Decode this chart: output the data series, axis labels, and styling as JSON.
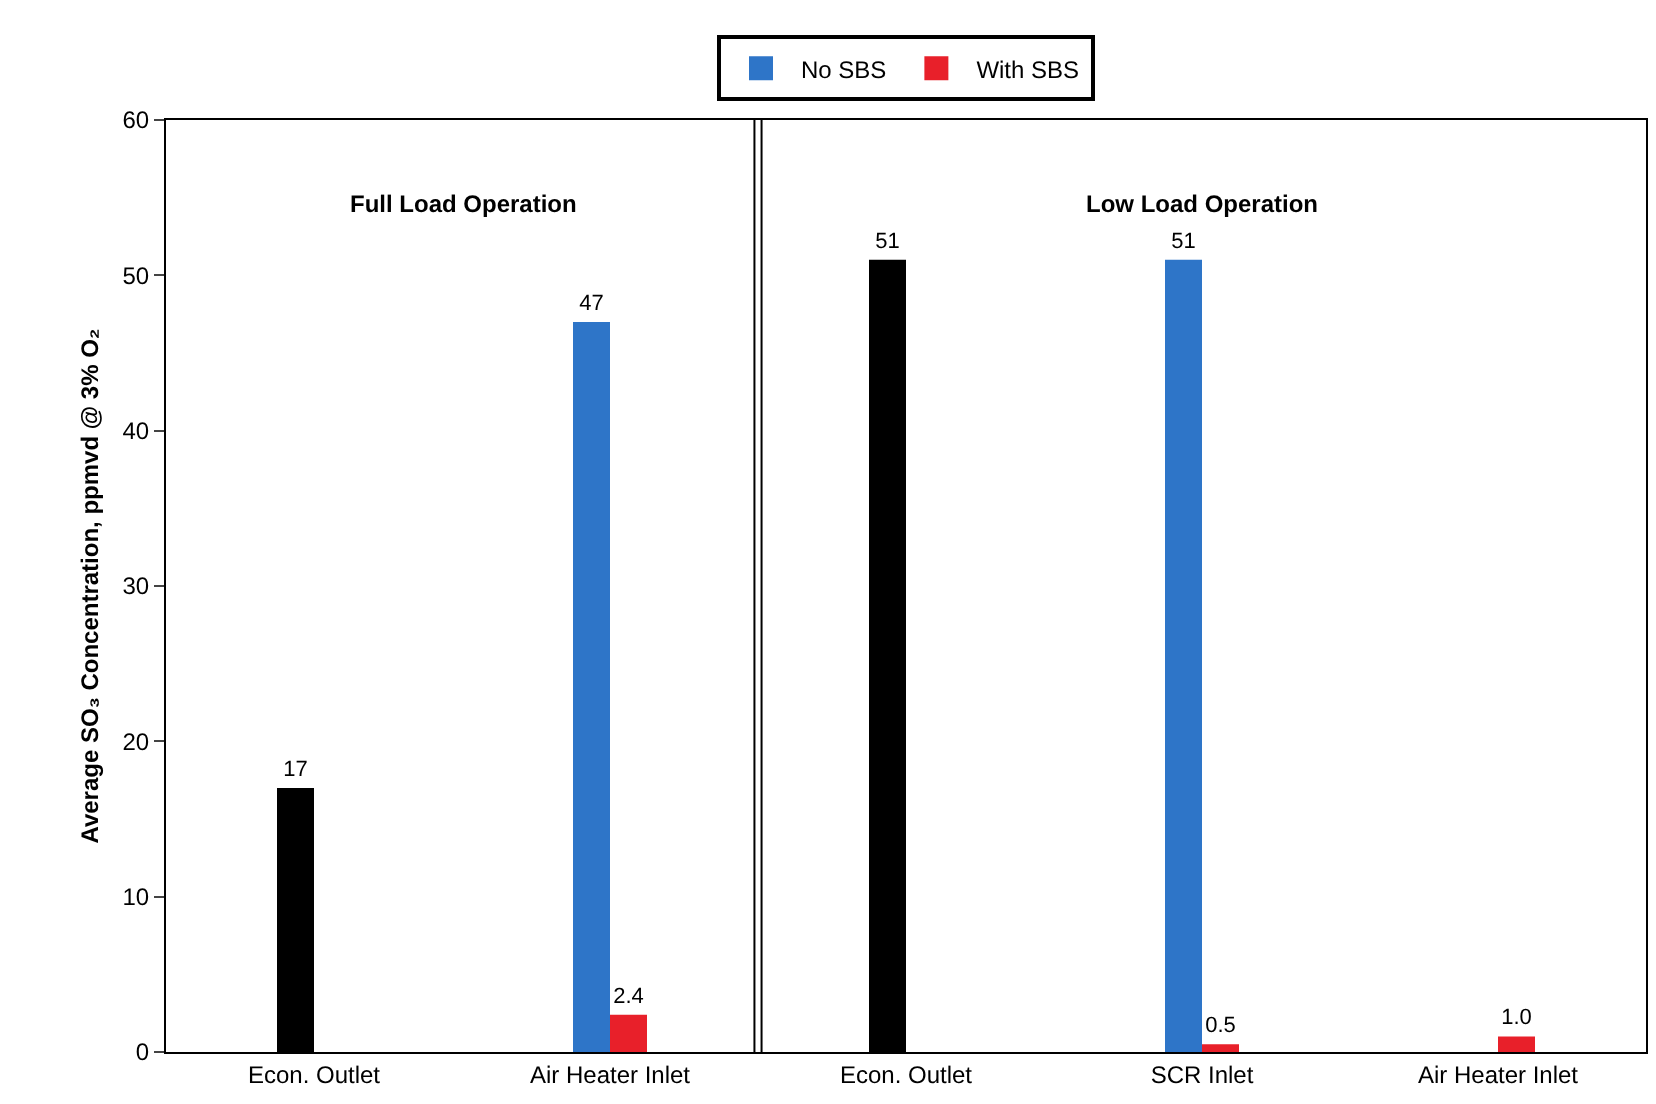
{
  "chart_data": {
    "type": "bar",
    "ylabel": "Average SO₃ Concentration, ppmvd @ 3% O₂",
    "categories": [
      "Econ. Outlet",
      "Air Heater Inlet",
      "Econ. Outlet",
      "SCR Inlet",
      "Air Heater Inlet"
    ],
    "series": [
      {
        "color": "#000000",
        "values": [
          17,
          null,
          51,
          null,
          null
        ],
        "value_labels": [
          "17",
          null,
          "51",
          null,
          null
        ]
      },
      {
        "name": "No SBS",
        "color": "#2e75c8",
        "values": [
          null,
          47,
          null,
          51,
          null
        ],
        "value_labels": [
          null,
          "47",
          null,
          "51",
          null
        ]
      },
      {
        "name": "With SBS",
        "color": "#e8202a",
        "values": [
          null,
          2.4,
          null,
          0.5,
          1.0
        ],
        "value_labels": [
          null,
          "2.4",
          null,
          "0.5",
          "1.0"
        ]
      }
    ],
    "ylim": [
      0,
      60
    ],
    "yticks": [
      0,
      10,
      20,
      30,
      40,
      50,
      60
    ],
    "grid": false,
    "legend": "top",
    "annotations": [
      "Full Load Operation",
      "Low Load Operation"
    ]
  }
}
